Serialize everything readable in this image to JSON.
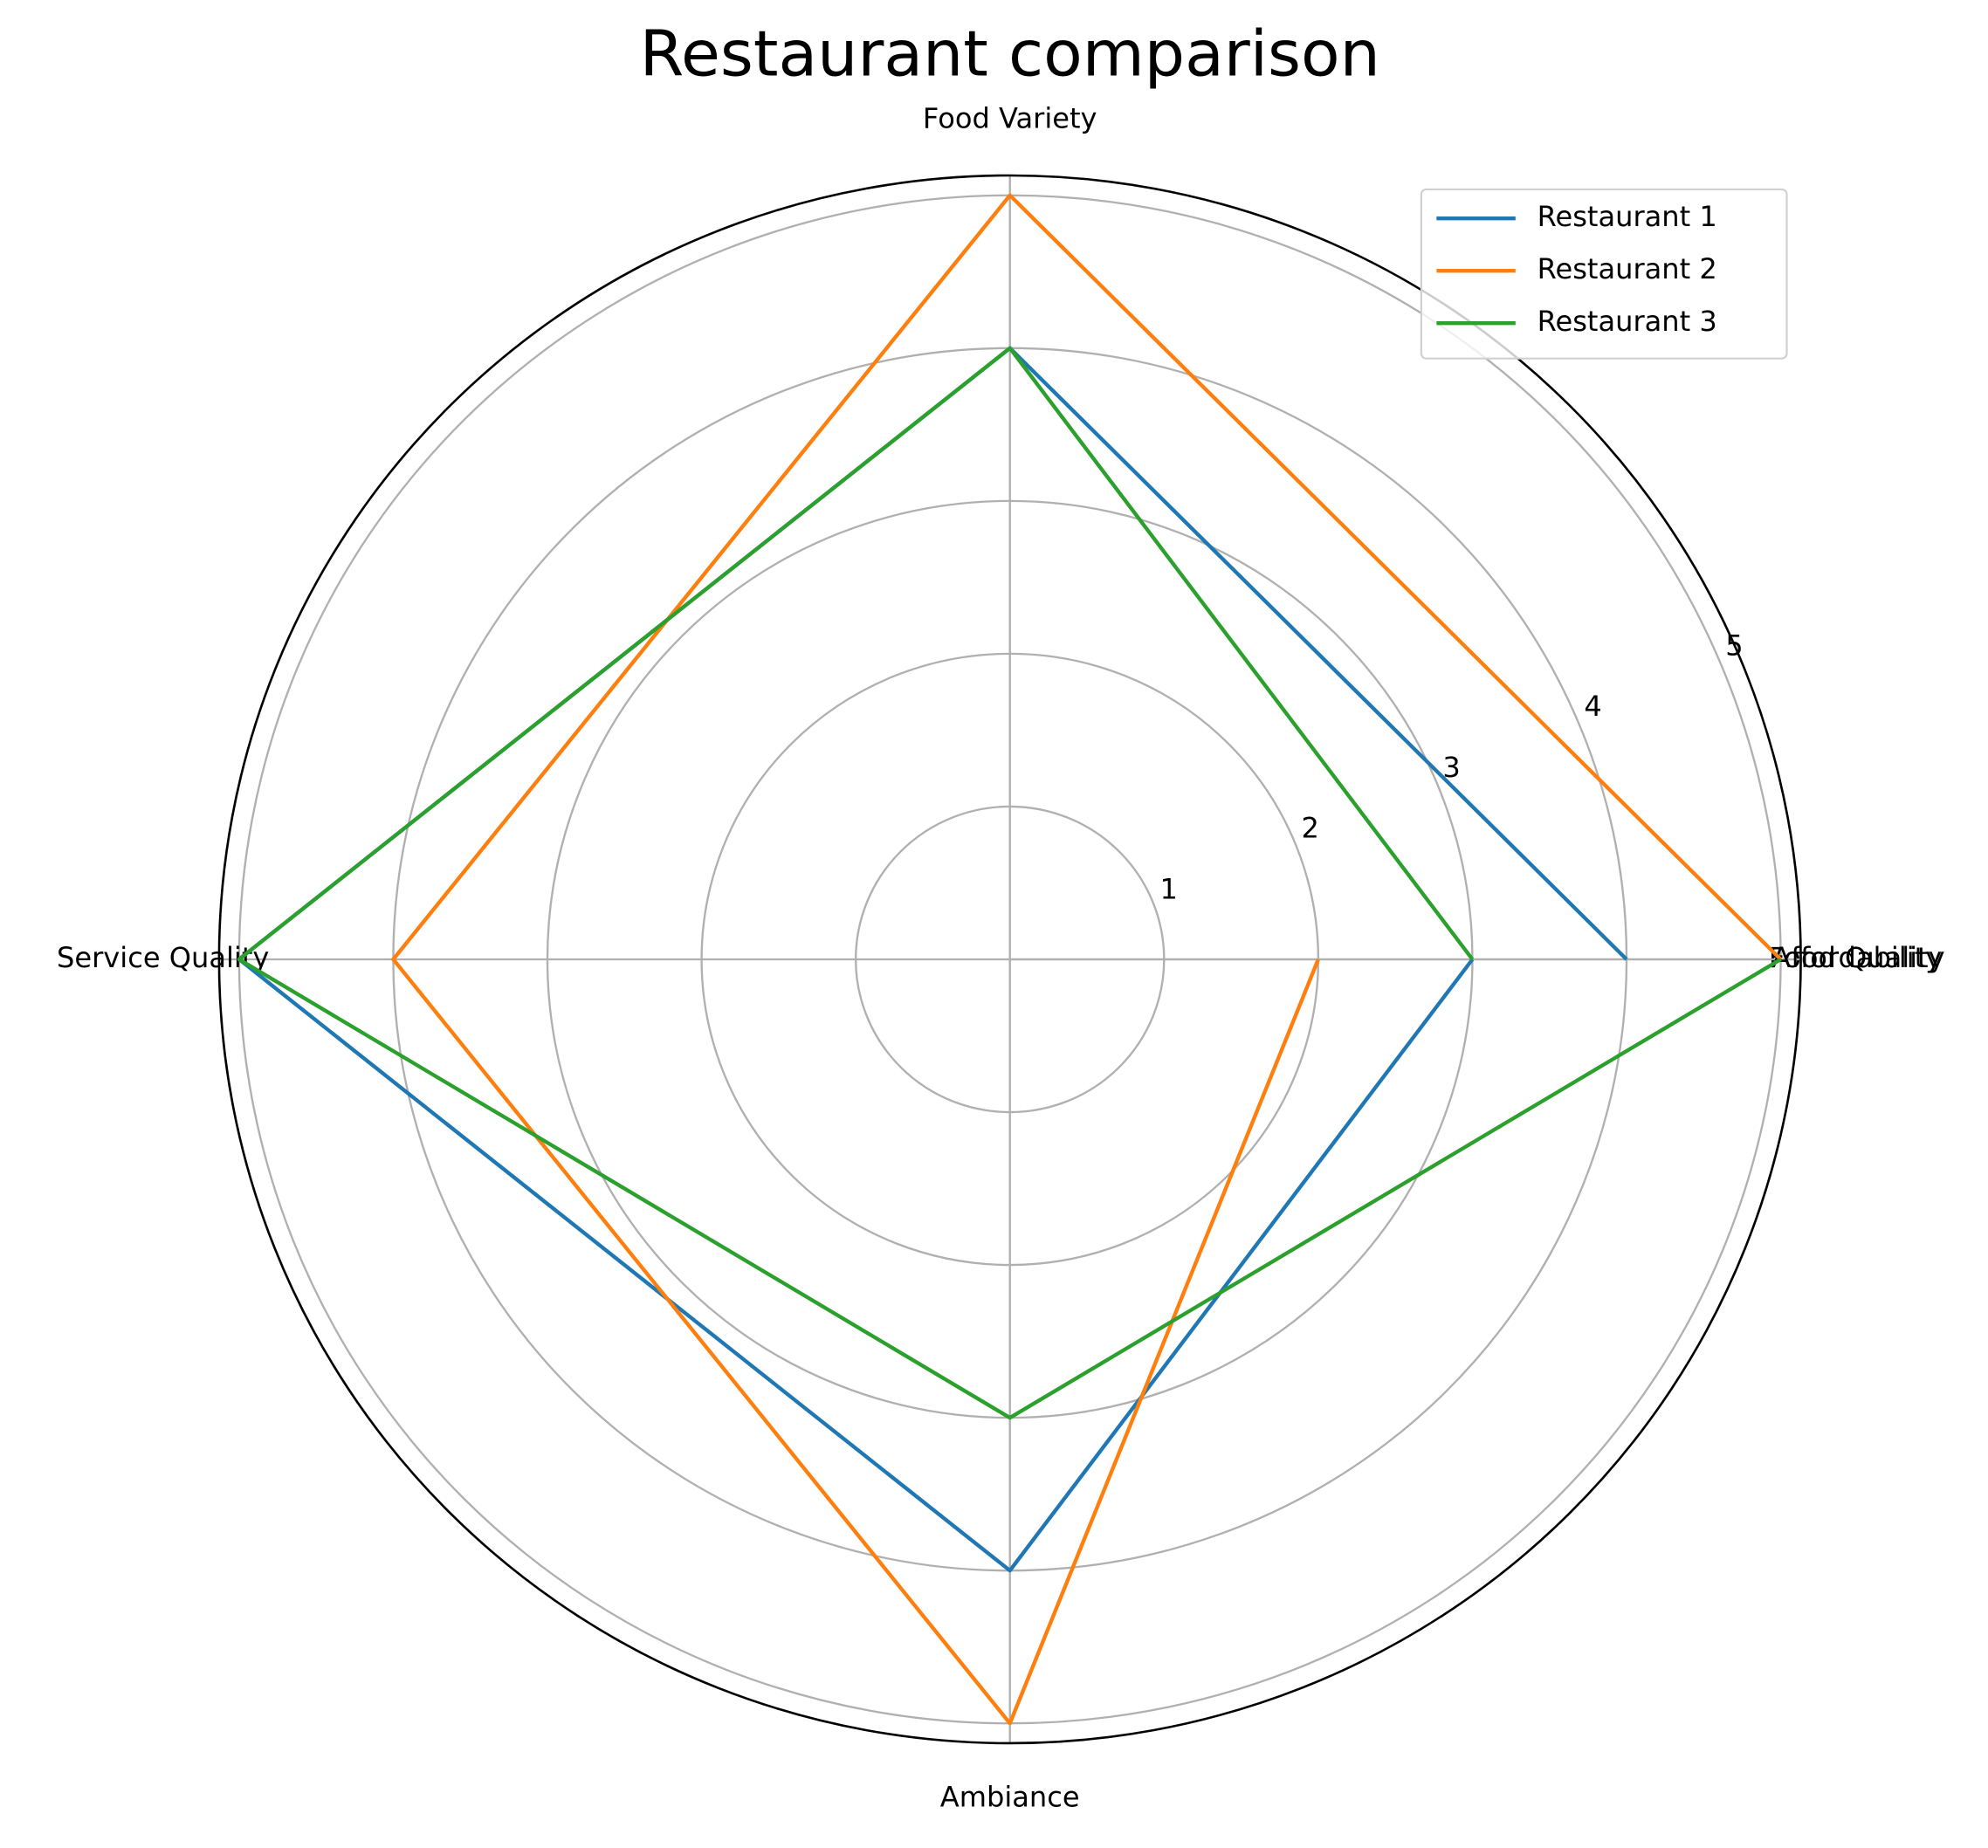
{
  "chart_data": {
    "type": "radar",
    "title": "Restaurant comparison",
    "categories": [
      "Food Quality",
      "Food Variety",
      "Service Quality",
      "Ambiance",
      "Affordability"
    ],
    "series": [
      {
        "name": "Restaurant 1",
        "color": "#1f77b4",
        "values": [
          4,
          4,
          5,
          4,
          3
        ]
      },
      {
        "name": "Restaurant 2",
        "color": "#ff7f0e",
        "values": [
          5,
          5,
          4,
          5,
          2
        ]
      },
      {
        "name": "Restaurant 3",
        "color": "#2ca02c",
        "values": [
          3,
          4,
          5,
          3,
          5
        ]
      }
    ],
    "ylim": [
      0,
      5.13
    ],
    "yticks": [
      1,
      2,
      3,
      4,
      5
    ],
    "grid": true,
    "legend": "upper right"
  }
}
